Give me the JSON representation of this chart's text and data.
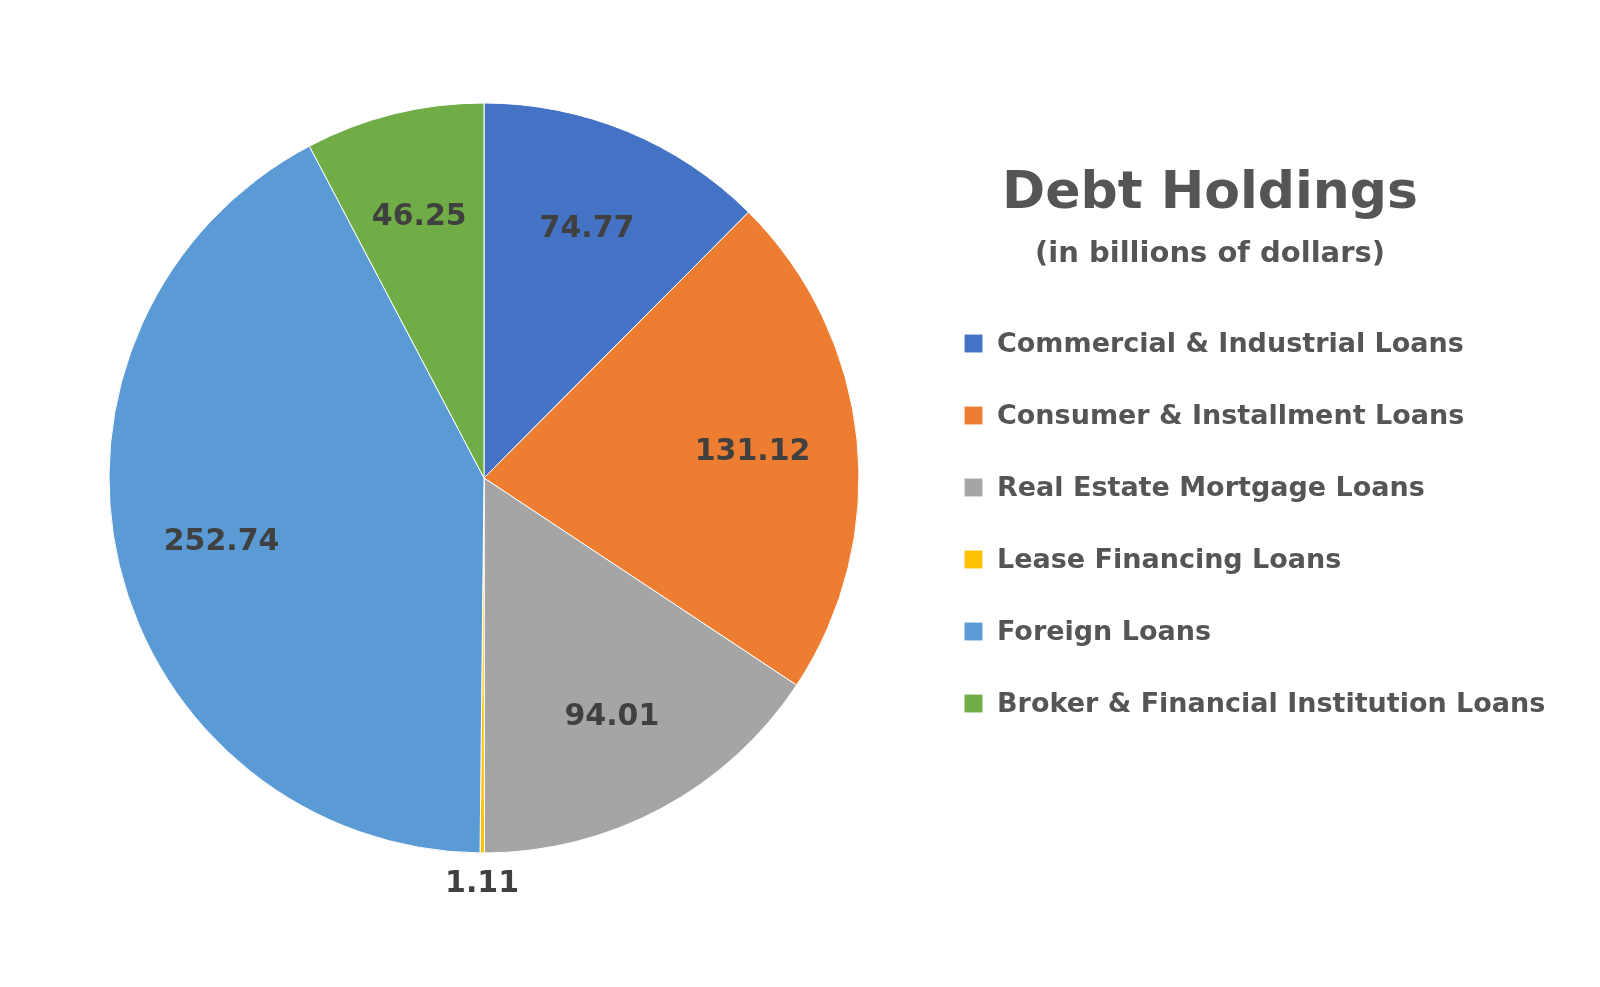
{
  "chart_data": {
    "type": "pie",
    "title": "Debt Holdings",
    "subtitle": "(in billions of dollars)",
    "categories": [
      "Commercial & Industrial Loans",
      "Consumer & Installment Loans",
      "Real Estate Mortgage Loans",
      "Lease Financing Loans",
      "Foreign Loans",
      "Broker & Financial Institution Loans"
    ],
    "values": [
      74.77,
      131.12,
      94.01,
      1.11,
      252.74,
      46.25
    ],
    "colors": [
      "#4472c4",
      "#ed7d31",
      "#a5a5a5",
      "#ffc000",
      "#5b9bd5",
      "#70ad47"
    ],
    "data_labels": true,
    "legend": "right"
  }
}
